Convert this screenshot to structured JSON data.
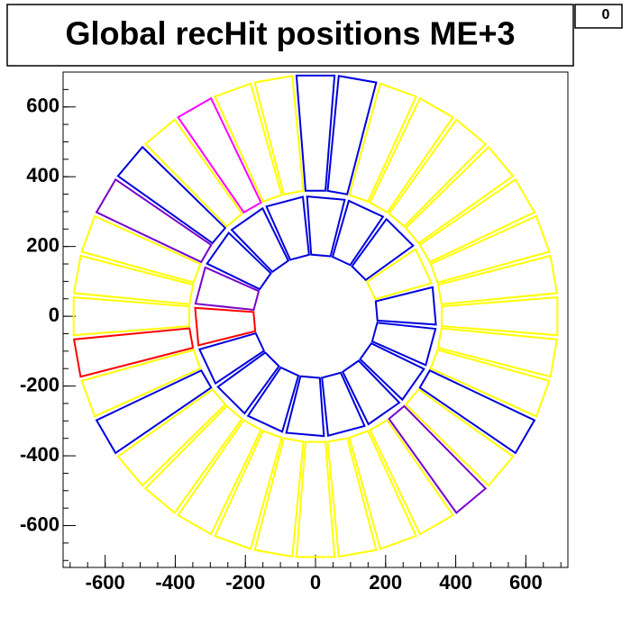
{
  "chart_data": {
    "type": "chambers",
    "title": "Global recHit positions ME+3",
    "stats_label": "0",
    "xlim": [
      -720,
      720
    ],
    "ylim": [
      -720,
      700
    ],
    "xticks": [
      -600,
      -400,
      -200,
      0,
      200,
      400,
      600
    ],
    "yticks": [
      -600,
      -400,
      -200,
      0,
      200,
      400,
      600
    ],
    "rings": [
      {
        "r_inner": 175,
        "r_outer": 340,
        "count": 18,
        "offset_deg": 5,
        "span_deg": 18,
        "colors": [
          "#0000dd",
          "#ffff00",
          "#0000dd",
          "#0000dd",
          "#0000dd",
          "#0000dd",
          "#0000dd",
          "#0000dd",
          "#7700cc",
          "#ff0000",
          "#0000dd",
          "#0000dd",
          "#0000dd",
          "#0000dd",
          "#0000dd",
          "#0000dd",
          "#0000dd",
          "#0000dd"
        ]
      },
      {
        "r_inner": 360,
        "r_outer": 690,
        "count": 36,
        "offset_deg": 0,
        "span_deg": 9,
        "colors": [
          "#ffff00",
          "#ffff00",
          "#ffff00",
          "#ffff00",
          "#ffff00",
          "#ffff00",
          "#ffff00",
          "#ffff00",
          "#0000dd",
          "#0000dd",
          "#ffff00",
          "#ffff00",
          "#ff00ff",
          "#ffff00",
          "#0000dd",
          "#7700cc",
          "#ffff00",
          "#ffff00",
          "#ffff00",
          "#ff0000",
          "#ffff00",
          "#0000dd",
          "#ffff00",
          "#ffff00",
          "#ffff00",
          "#ffff00",
          "#ffff00",
          "#ffff00",
          "#ffff00",
          "#ffff00",
          "#ffff00",
          "#7700cc",
          "#ffff00",
          "#0000dd",
          "#ffff00",
          "#ffff00"
        ]
      }
    ]
  }
}
